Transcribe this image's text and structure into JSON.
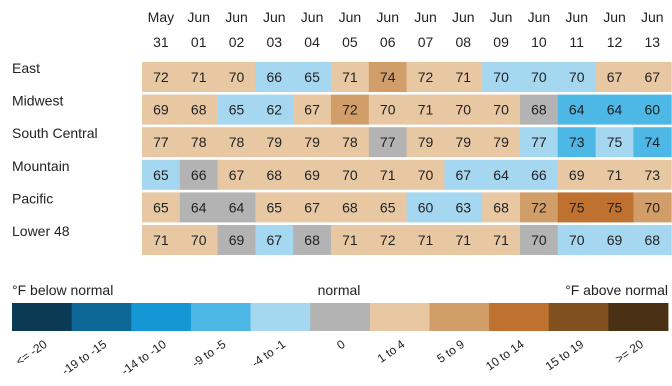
{
  "chart_data": {
    "type": "heatmap",
    "title": "",
    "columns": [
      {
        "month": "May",
        "day": "31"
      },
      {
        "month": "Jun",
        "day": "01"
      },
      {
        "month": "Jun",
        "day": "02"
      },
      {
        "month": "Jun",
        "day": "03"
      },
      {
        "month": "Jun",
        "day": "04"
      },
      {
        "month": "Jun",
        "day": "05"
      },
      {
        "month": "Jun",
        "day": "06"
      },
      {
        "month": "Jun",
        "day": "07"
      },
      {
        "month": "Jun",
        "day": "08"
      },
      {
        "month": "Jun",
        "day": "09"
      },
      {
        "month": "Jun",
        "day": "10"
      },
      {
        "month": "Jun",
        "day": "11"
      },
      {
        "month": "Jun",
        "day": "12"
      },
      {
        "month": "Jun",
        "day": "13"
      }
    ],
    "rows": [
      {
        "name": "East",
        "values": [
          72,
          71,
          70,
          66,
          65,
          71,
          74,
          72,
          71,
          70,
          70,
          70,
          67,
          67
        ],
        "anomaly": [
          2,
          2,
          2,
          -2,
          -2,
          2,
          6,
          2,
          2,
          -2,
          -2,
          -2,
          2,
          2
        ]
      },
      {
        "name": "Midwest",
        "values": [
          69,
          68,
          65,
          62,
          67,
          72,
          70,
          71,
          70,
          70,
          68,
          64,
          64,
          60
        ],
        "anomaly": [
          2,
          2,
          -2,
          -2,
          2,
          6,
          2,
          2,
          2,
          2,
          0,
          -6,
          -6,
          -9
        ]
      },
      {
        "name": "South Central",
        "values": [
          77,
          78,
          78,
          79,
          79,
          78,
          77,
          79,
          79,
          79,
          77,
          73,
          75,
          74
        ],
        "anomaly": [
          2,
          2,
          2,
          2,
          2,
          2,
          0,
          2,
          2,
          2,
          -2,
          -6,
          -2,
          -6
        ]
      },
      {
        "name": "Mountain",
        "values": [
          65,
          66,
          67,
          68,
          69,
          70,
          71,
          70,
          67,
          64,
          66,
          69,
          71,
          73
        ],
        "anomaly": [
          -2,
          0,
          2,
          2,
          2,
          2,
          2,
          2,
          -2,
          -2,
          -2,
          2,
          2,
          2
        ]
      },
      {
        "name": "Pacific",
        "values": [
          65,
          64,
          64,
          65,
          67,
          68,
          65,
          60,
          63,
          68,
          72,
          75,
          75,
          70
        ],
        "anomaly": [
          2,
          0,
          0,
          2,
          2,
          2,
          2,
          -2,
          -2,
          2,
          6,
          12,
          12,
          6
        ]
      },
      {
        "name": "Lower 48",
        "values": [
          71,
          70,
          69,
          67,
          68,
          71,
          72,
          71,
          71,
          71,
          70,
          70,
          69,
          68
        ],
        "anomaly": [
          2,
          2,
          0,
          -2,
          0,
          2,
          2,
          2,
          2,
          2,
          0,
          -2,
          -2,
          -2
        ]
      }
    ],
    "legend": {
      "left_label": "°F below normal",
      "center_label": "normal",
      "right_label": "°F above normal",
      "bins": [
        {
          "label": "<= -20",
          "color": "#0b3a55"
        },
        {
          "label": "-19 to -15",
          "color": "#0d6897"
        },
        {
          "label": "-14 to -10",
          "color": "#1497d4"
        },
        {
          "label": "-9 to -5",
          "color": "#4db7e5"
        },
        {
          "label": "-4 to -1",
          "color": "#a6d7f0"
        },
        {
          "label": "0",
          "color": "#b3b3b3"
        },
        {
          "label": "1 to 4",
          "color": "#e8c7a3"
        },
        {
          "label": "5 to 9",
          "color": "#d19e6a"
        },
        {
          "label": "10 to 14",
          "color": "#bf712f"
        },
        {
          "label": "15 to 19",
          "color": "#80501e"
        },
        {
          ">= 20": "",
          "label": ">= 20",
          "color": "#4a3015"
        }
      ]
    }
  }
}
